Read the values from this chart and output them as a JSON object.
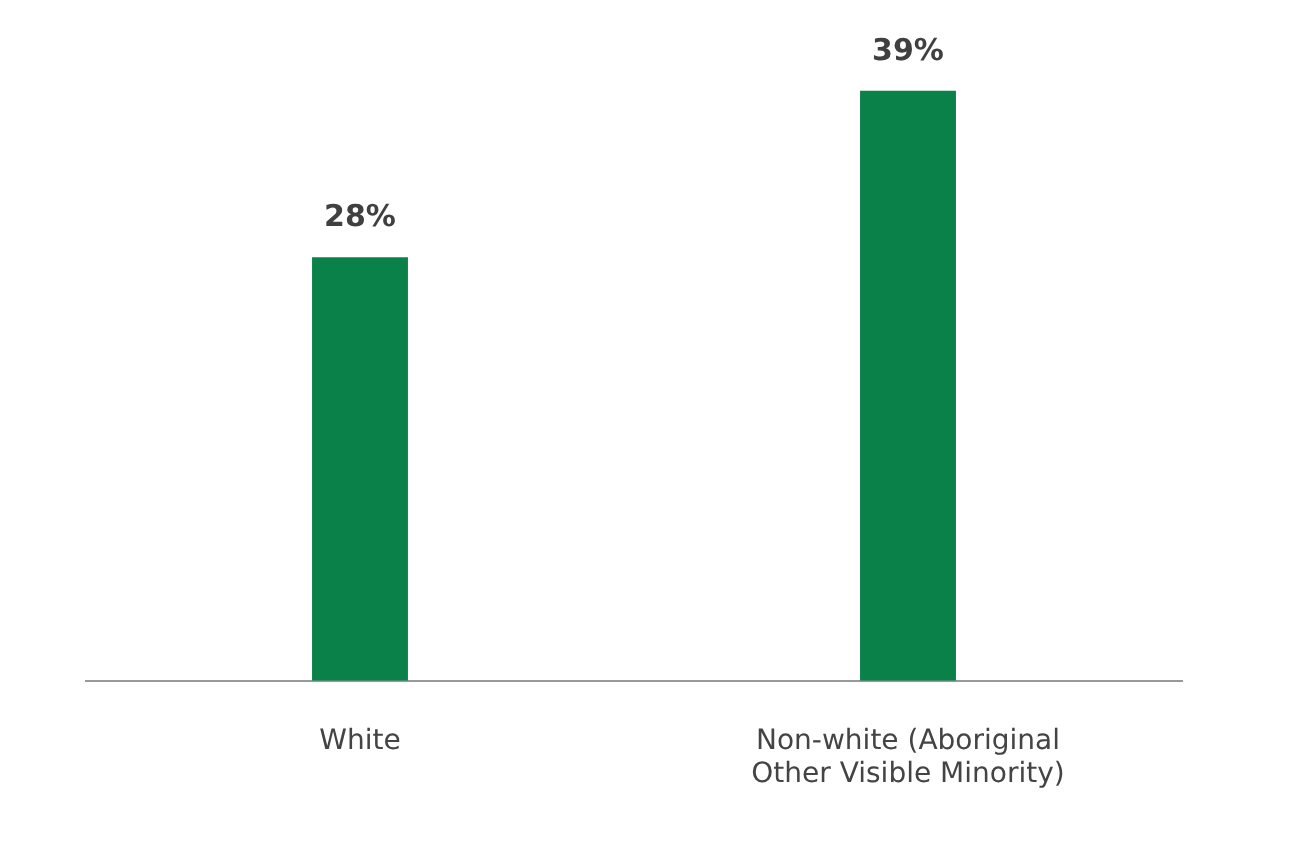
{
  "chart_data": {
    "type": "bar",
    "categories": [
      "White",
      "Non-white (Aboriginal Other Visible Minority)"
    ],
    "values": [
      28,
      39
    ],
    "value_labels": [
      "28%",
      "39%"
    ],
    "color": "#0a8149",
    "grid": false,
    "legend": false
  }
}
